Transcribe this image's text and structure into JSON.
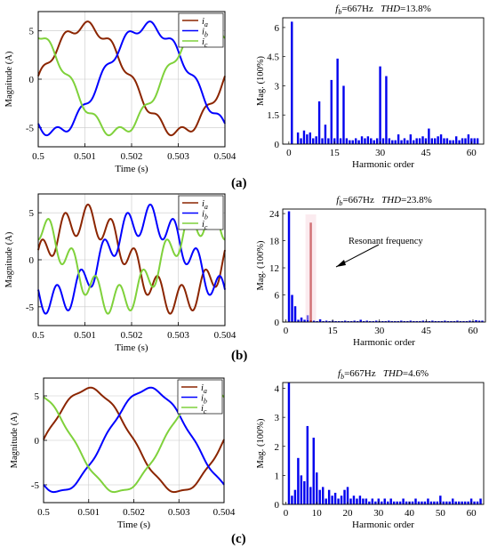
{
  "panels": [
    "(a)",
    "(b)",
    "(c)"
  ],
  "chart_data": [
    {
      "type": "line",
      "panel": "(a)",
      "xlabel": "Time (s)",
      "ylabel": "Magnitude (A)",
      "xlim": [
        0.5,
        0.504
      ],
      "ylim": [
        -7,
        7
      ],
      "xticks": [
        "0.5",
        "0.501",
        "0.502",
        "0.503",
        "0.504"
      ],
      "yticks": [
        "5",
        "0",
        "-5"
      ],
      "grid": true,
      "legend_position": "top-right",
      "frequency_hz": 250,
      "amplitude_a": 5.5,
      "ripple_amplitude_a": 0.5,
      "ripple_harmonic": 8,
      "series": [
        {
          "name": "ia",
          "sub": "a",
          "color": "#8B2500",
          "phase_deg": 0
        },
        {
          "name": "ib",
          "sub": "b",
          "color": "#0000FF",
          "phase_deg": -120
        },
        {
          "name": "ic",
          "sub": "c",
          "color": "#7FD13B",
          "phase_deg": 120
        }
      ]
    },
    {
      "type": "bar",
      "panel": "(a)",
      "title_fb_label": "f",
      "title_fb_sub": "b",
      "title_fb_value": "=667Hz",
      "title_thd_label": "THD",
      "title_thd_value": "=13.8%",
      "xlabel": "Harmonic order",
      "ylabel": "Mag. (100%)",
      "xlim": [
        -2,
        64
      ],
      "ylim": [
        0,
        6.5
      ],
      "xticks": [
        "0",
        "15",
        "30",
        "45",
        "60"
      ],
      "yticks": [
        "0",
        "1.5",
        "3",
        "4.5",
        "6"
      ],
      "bar_color": "#0000EE",
      "x": [
        1,
        2,
        3,
        4,
        5,
        6,
        7,
        8,
        9,
        10,
        11,
        12,
        13,
        14,
        15,
        16,
        17,
        18,
        19,
        20,
        21,
        22,
        23,
        24,
        25,
        26,
        27,
        28,
        29,
        30,
        31,
        32,
        33,
        34,
        35,
        36,
        37,
        38,
        39,
        40,
        41,
        42,
        43,
        44,
        45,
        46,
        47,
        48,
        49,
        50,
        51,
        52,
        53,
        54,
        55,
        56,
        57,
        58,
        59,
        60,
        61,
        62
      ],
      "values": [
        6.3,
        0.0,
        0.6,
        0.3,
        0.7,
        0.5,
        0.6,
        0.3,
        0.4,
        2.2,
        0.3,
        1.0,
        0.3,
        3.3,
        0.3,
        4.4,
        0.3,
        3.0,
        0.3,
        0.2,
        0.2,
        0.3,
        0.2,
        0.4,
        0.3,
        0.4,
        0.3,
        0.2,
        0.3,
        4.0,
        0.3,
        3.5,
        0.3,
        0.2,
        0.2,
        0.5,
        0.2,
        0.3,
        0.2,
        0.5,
        0.2,
        0.3,
        0.3,
        0.4,
        0.3,
        0.8,
        0.3,
        0.3,
        0.4,
        0.5,
        0.3,
        0.3,
        0.2,
        0.2,
        0.4,
        0.2,
        0.3,
        0.3,
        0.5,
        0.3,
        0.3,
        0.3
      ]
    },
    {
      "type": "line",
      "panel": "(b)",
      "xlabel": "Time (s)",
      "ylabel": "Magnitude (A)",
      "xlim": [
        0.5,
        0.504
      ],
      "ylim": [
        -7,
        7
      ],
      "xticks": [
        "0.5",
        "0.501",
        "0.502",
        "0.503",
        "0.504"
      ],
      "yticks": [
        "5",
        "0",
        "-5"
      ],
      "grid": true,
      "legend_position": "top-right",
      "frequency_hz": 250,
      "amplitude_a": 4.3,
      "ripple_amplitude_a": 1.6,
      "ripple_harmonic": 8,
      "series": [
        {
          "name": "ia",
          "sub": "a",
          "color": "#8B2500",
          "phase_deg": 0
        },
        {
          "name": "ib",
          "sub": "b",
          "color": "#0000FF",
          "phase_deg": -120
        },
        {
          "name": "ic",
          "sub": "c",
          "color": "#7FD13B",
          "phase_deg": 120
        }
      ]
    },
    {
      "type": "bar",
      "panel": "(b)",
      "title_fb_label": "f",
      "title_fb_sub": "b",
      "title_fb_value": "=667Hz",
      "title_thd_label": "THD",
      "title_thd_value": "=23.8%",
      "xlabel": "Harmonic order",
      "ylabel": "Mag. (100%)",
      "xlim": [
        -1,
        64
      ],
      "ylim": [
        0,
        25
      ],
      "xticks": [
        "0",
        "15",
        "30",
        "45",
        "60"
      ],
      "yticks": [
        "0",
        "6",
        "12",
        "18",
        "24"
      ],
      "bar_color": "#0000EE",
      "highlight_color": "#B22222",
      "highlight_x": 8,
      "annotation": "Resonant frequency",
      "x": [
        1,
        2,
        3,
        4,
        5,
        6,
        7,
        8,
        9,
        10,
        11,
        12,
        13,
        14,
        15,
        16,
        17,
        18,
        19,
        20,
        21,
        22,
        23,
        24,
        25,
        26,
        27,
        28,
        29,
        30,
        31,
        32,
        33,
        34,
        35,
        36,
        37,
        38,
        39,
        40,
        41,
        42,
        43,
        44,
        45,
        46,
        47,
        48,
        49,
        50,
        51,
        52,
        53,
        54,
        55,
        56,
        57,
        58,
        59,
        60,
        61,
        62,
        63
      ],
      "values": [
        24.5,
        6.0,
        3.5,
        0.5,
        1.0,
        0.5,
        1.5,
        22.0,
        0.3,
        0.2,
        0.6,
        0.2,
        0.3,
        0.2,
        0.3,
        0.2,
        0.2,
        0.2,
        0.3,
        0.2,
        0.2,
        0.3,
        0.2,
        0.5,
        0.2,
        0.3,
        0.2,
        0.2,
        0.3,
        0.2,
        0.2,
        0.2,
        0.3,
        0.2,
        0.2,
        0.2,
        0.3,
        0.2,
        0.2,
        0.3,
        0.2,
        0.2,
        0.2,
        0.3,
        0.2,
        0.2,
        0.3,
        0.2,
        0.2,
        0.2,
        0.3,
        0.2,
        0.2,
        0.2,
        0.3,
        0.2,
        0.2,
        0.2,
        0.3,
        0.2,
        0.4,
        0.3,
        0.3
      ]
    },
    {
      "type": "line",
      "panel": "(c)",
      "xlabel": "Time (s)",
      "ylabel": "Magnitude (A)",
      "xlim": [
        0.5,
        0.504
      ],
      "ylim": [
        -7,
        7
      ],
      "xticks": [
        "0.5",
        "0.501",
        "0.502",
        "0.503",
        "0.504"
      ],
      "yticks": [
        "5",
        "0",
        "-5"
      ],
      "grid": true,
      "legend_position": "top-right",
      "frequency_hz": 250,
      "amplitude_a": 5.8,
      "ripple_amplitude_a": 0.15,
      "ripple_harmonic": 8,
      "series": [
        {
          "name": "ia",
          "sub": "a",
          "color": "#8B2500",
          "phase_deg": 0
        },
        {
          "name": "ib",
          "sub": "b",
          "color": "#0000FF",
          "phase_deg": -120
        },
        {
          "name": "ic",
          "sub": "c",
          "color": "#7FD13B",
          "phase_deg": 120
        }
      ]
    },
    {
      "type": "bar",
      "panel": "(c)",
      "title_fb_label": "f",
      "title_fb_sub": "b",
      "title_fb_value": "=667Hz",
      "title_thd_label": "THD",
      "title_thd_value": "=4.6%",
      "xlabel": "Harmonic order",
      "ylabel": "Mag. (100%)",
      "xlim": [
        -1,
        64
      ],
      "ylim": [
        0,
        4.2
      ],
      "xticks": [
        "0",
        "10",
        "20",
        "30",
        "40",
        "50",
        "60"
      ],
      "yticks": [
        "0",
        "1",
        "2",
        "3",
        "4"
      ],
      "bar_color": "#0000EE",
      "x": [
        1,
        2,
        3,
        4,
        5,
        6,
        7,
        8,
        9,
        10,
        11,
        12,
        13,
        14,
        15,
        16,
        17,
        18,
        19,
        20,
        21,
        22,
        23,
        24,
        25,
        26,
        27,
        28,
        29,
        30,
        31,
        32,
        33,
        34,
        35,
        36,
        37,
        38,
        39,
        40,
        41,
        42,
        43,
        44,
        45,
        46,
        47,
        48,
        49,
        50,
        51,
        52,
        53,
        54,
        55,
        56,
        57,
        58,
        59,
        60,
        61,
        62,
        63
      ],
      "values": [
        4.2,
        0.3,
        0.5,
        1.6,
        1.0,
        0.8,
        2.7,
        0.6,
        2.3,
        1.1,
        0.5,
        0.6,
        0.2,
        0.5,
        0.3,
        0.4,
        0.2,
        0.3,
        0.5,
        0.6,
        0.2,
        0.3,
        0.2,
        0.3,
        0.2,
        0.2,
        0.1,
        0.2,
        0.1,
        0.2,
        0.1,
        0.2,
        0.1,
        0.2,
        0.1,
        0.1,
        0.1,
        0.2,
        0.1,
        0.1,
        0.1,
        0.2,
        0.1,
        0.1,
        0.1,
        0.2,
        0.1,
        0.1,
        0.1,
        0.3,
        0.1,
        0.1,
        0.1,
        0.2,
        0.1,
        0.1,
        0.1,
        0.1,
        0.1,
        0.2,
        0.1,
        0.1,
        0.2
      ]
    }
  ]
}
